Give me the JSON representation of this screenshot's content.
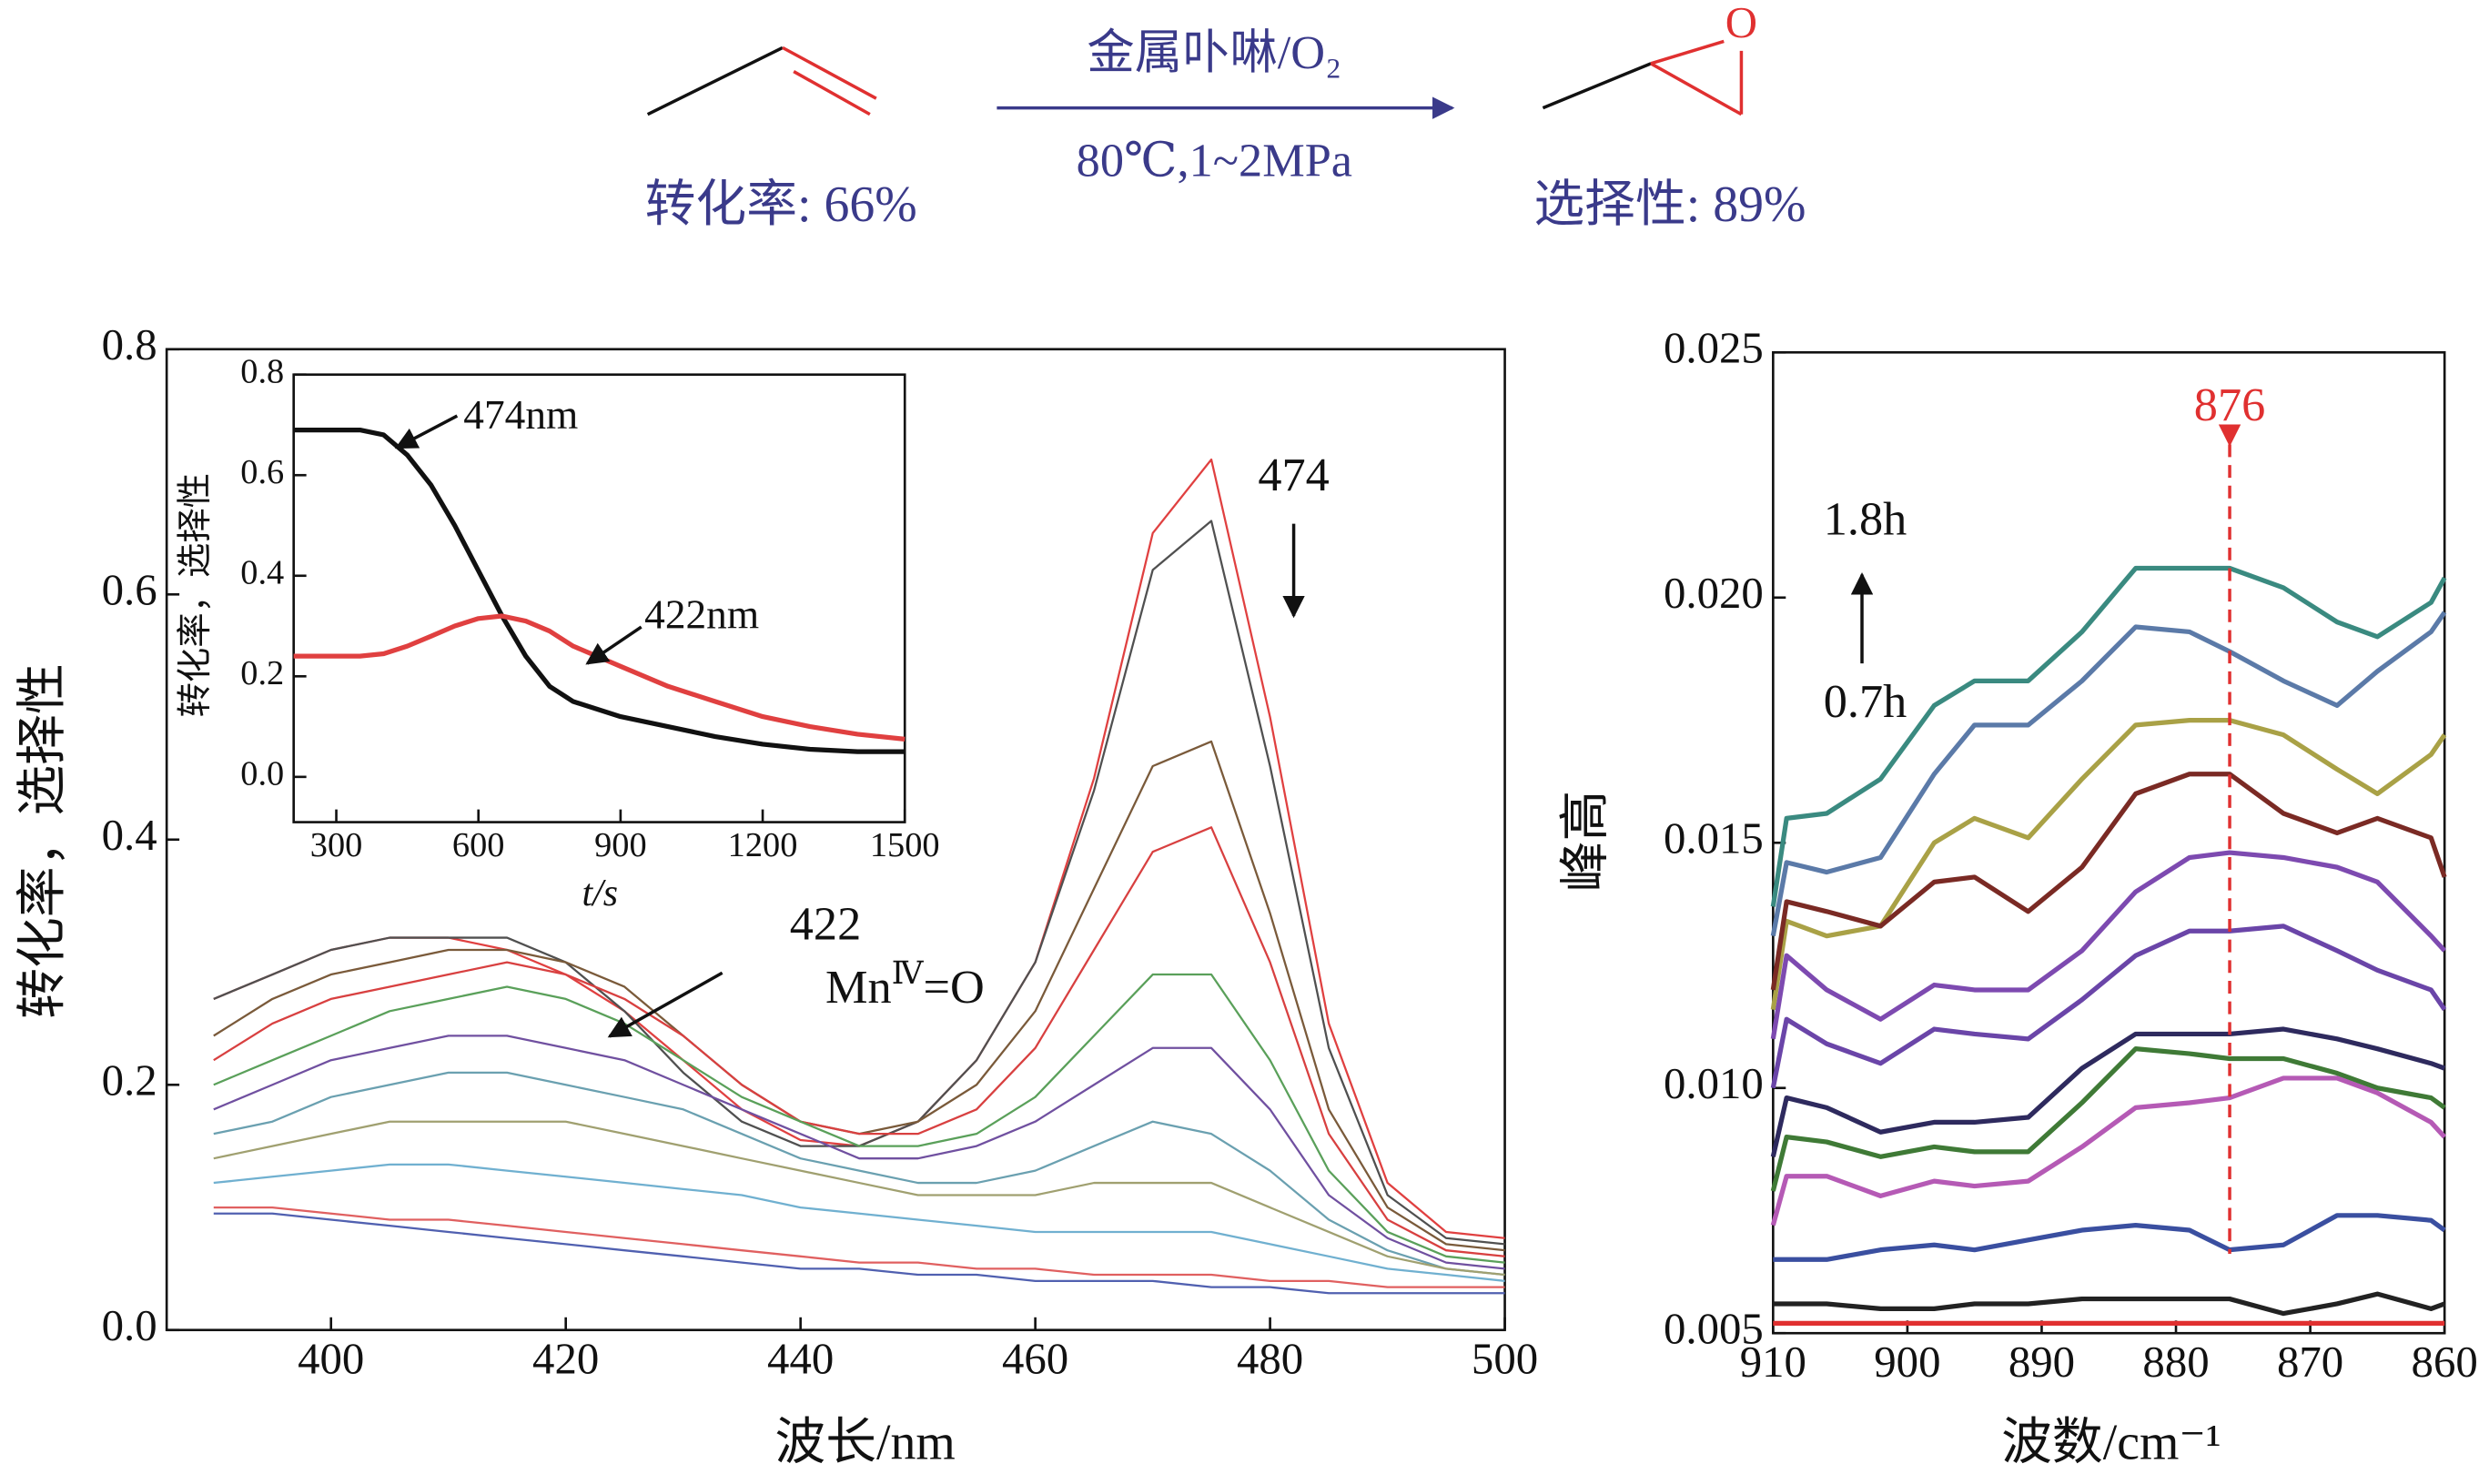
{
  "scheme": {
    "catalyst": "金属卟啉/O₂",
    "conditions": "80℃,1~2MPa",
    "conversion": "转化率: 66%",
    "selectivity": "选择性: 89%",
    "oxygen": "O"
  },
  "chart_data": [
    {
      "type": "line",
      "ylabel": "转化率，选择性",
      "xlabel": "波长/nm",
      "xlim": [
        386,
        500
      ],
      "ylim": [
        0,
        0.8
      ],
      "xticks": [
        400,
        420,
        440,
        460,
        480,
        500
      ],
      "yticks": [
        {
          "value": 0,
          "label": "0.0"
        },
        0.2,
        0.4,
        0.6,
        0.8
      ],
      "x": [
        390,
        395,
        400,
        405,
        410,
        415,
        420,
        425,
        430,
        435,
        440,
        445,
        450,
        455,
        460,
        465,
        470,
        475,
        480,
        485,
        490,
        495,
        500
      ],
      "series": [
        {
          "color": "#e04040",
          "values": [
            0.27,
            0.29,
            0.31,
            0.32,
            0.32,
            0.31,
            0.29,
            0.26,
            0.22,
            0.18,
            0.155,
            0.15,
            0.17,
            0.22,
            0.3,
            0.45,
            0.65,
            0.71,
            0.5,
            0.25,
            0.12,
            0.08,
            0.075
          ]
        },
        {
          "color": "#505050",
          "values": [
            0.27,
            0.29,
            0.31,
            0.32,
            0.32,
            0.32,
            0.3,
            0.26,
            0.21,
            0.17,
            0.15,
            0.15,
            0.17,
            0.22,
            0.3,
            0.44,
            0.62,
            0.66,
            0.46,
            0.23,
            0.11,
            0.075,
            0.07
          ]
        },
        {
          "color": "#7a5a3a",
          "values": [
            0.24,
            0.27,
            0.29,
            0.3,
            0.31,
            0.31,
            0.3,
            0.28,
            0.24,
            0.2,
            0.17,
            0.16,
            0.17,
            0.2,
            0.26,
            0.36,
            0.46,
            0.48,
            0.34,
            0.18,
            0.1,
            0.07,
            0.065
          ]
        },
        {
          "color": "#d84040",
          "values": [
            0.22,
            0.25,
            0.27,
            0.28,
            0.29,
            0.3,
            0.29,
            0.27,
            0.24,
            0.2,
            0.17,
            0.16,
            0.16,
            0.18,
            0.23,
            0.31,
            0.39,
            0.41,
            0.3,
            0.16,
            0.09,
            0.065,
            0.06
          ]
        },
        {
          "color": "#5aa05a",
          "values": [
            0.2,
            0.22,
            0.24,
            0.26,
            0.27,
            0.28,
            0.27,
            0.25,
            0.22,
            0.19,
            0.17,
            0.15,
            0.15,
            0.16,
            0.19,
            0.24,
            0.29,
            0.29,
            0.22,
            0.13,
            0.08,
            0.06,
            0.055
          ]
        },
        {
          "color": "#7050a0",
          "values": [
            0.18,
            0.2,
            0.22,
            0.23,
            0.24,
            0.24,
            0.23,
            0.22,
            0.2,
            0.18,
            0.16,
            0.14,
            0.14,
            0.15,
            0.17,
            0.2,
            0.23,
            0.23,
            0.18,
            0.11,
            0.075,
            0.055,
            0.05
          ]
        },
        {
          "color": "#6aa0b0",
          "values": [
            0.16,
            0.17,
            0.19,
            0.2,
            0.21,
            0.21,
            0.2,
            0.19,
            0.18,
            0.16,
            0.14,
            0.13,
            0.12,
            0.12,
            0.13,
            0.15,
            0.17,
            0.16,
            0.13,
            0.09,
            0.065,
            0.05,
            0.045
          ]
        },
        {
          "color": "#a0a070",
          "values": [
            0.14,
            0.15,
            0.16,
            0.17,
            0.17,
            0.17,
            0.17,
            0.16,
            0.15,
            0.14,
            0.13,
            0.12,
            0.11,
            0.11,
            0.11,
            0.12,
            0.12,
            0.12,
            0.1,
            0.08,
            0.06,
            0.05,
            0.045
          ]
        },
        {
          "color": "#70b0d0",
          "values": [
            0.12,
            0.125,
            0.13,
            0.135,
            0.135,
            0.13,
            0.125,
            0.12,
            0.115,
            0.11,
            0.1,
            0.095,
            0.09,
            0.085,
            0.08,
            0.08,
            0.08,
            0.08,
            0.07,
            0.06,
            0.05,
            0.045,
            0.04
          ]
        },
        {
          "color": "#e06060",
          "values": [
            0.1,
            0.1,
            0.095,
            0.09,
            0.09,
            0.085,
            0.08,
            0.075,
            0.07,
            0.065,
            0.06,
            0.055,
            0.055,
            0.05,
            0.05,
            0.045,
            0.045,
            0.045,
            0.04,
            0.04,
            0.035,
            0.035,
            0.035
          ]
        },
        {
          "color": "#5060b0",
          "values": [
            0.095,
            0.095,
            0.09,
            0.085,
            0.08,
            0.075,
            0.07,
            0.065,
            0.06,
            0.055,
            0.05,
            0.05,
            0.045,
            0.045,
            0.04,
            0.04,
            0.04,
            0.035,
            0.035,
            0.03,
            0.03,
            0.03,
            0.03
          ]
        }
      ],
      "annotations": [
        {
          "text": "474"
        },
        {
          "text": "422"
        },
        {
          "text": [
            "Mn",
            "Ⅳ",
            "=O"
          ]
        }
      ]
    },
    {
      "type": "line",
      "ylabel": "转化率，选择性",
      "xlabel": "t/s",
      "xlim": [
        210,
        1500
      ],
      "ylim": [
        -0.09,
        0.8
      ],
      "xticks": [
        300,
        600,
        900,
        1200,
        1500
      ],
      "yticks": [
        {
          "value": 0,
          "label": "0.0"
        },
        0.2,
        0.4,
        0.6,
        0.8
      ],
      "x": [
        210,
        300,
        350,
        400,
        450,
        500,
        550,
        600,
        650,
        700,
        750,
        800,
        900,
        1000,
        1100,
        1200,
        1300,
        1400,
        1500
      ],
      "series": [
        {
          "color": "#111111",
          "values": [
            0.69,
            0.69,
            0.69,
            0.68,
            0.64,
            0.58,
            0.5,
            0.41,
            0.32,
            0.24,
            0.18,
            0.15,
            0.12,
            0.1,
            0.08,
            0.065,
            0.055,
            0.05,
            0.05
          ]
        },
        {
          "color": "#e04040",
          "values": [
            0.24,
            0.24,
            0.24,
            0.245,
            0.26,
            0.28,
            0.3,
            0.315,
            0.32,
            0.31,
            0.29,
            0.26,
            0.22,
            0.18,
            0.15,
            0.12,
            0.1,
            0.085,
            0.075
          ]
        }
      ],
      "annotations": [
        {
          "text": "474nm"
        },
        {
          "text": "422nm"
        }
      ]
    },
    {
      "type": "line",
      "ylabel": "峰高",
      "xlabel": "波数/cm⁻¹",
      "xlim": [
        910,
        860
      ],
      "ylim": [
        0.005,
        0.025
      ],
      "xticks": [
        910,
        900,
        890,
        880,
        870,
        860
      ],
      "yticks": [
        0.005,
        {
          "value": 0.01,
          "label": "0.010"
        },
        0.015,
        {
          "value": 0.02,
          "label": "0.020"
        },
        0.025
      ],
      "x": [
        910,
        909,
        906,
        902,
        898,
        895,
        891,
        887,
        883,
        879,
        876,
        872,
        868,
        865,
        861,
        860
      ],
      "series": [
        {
          "color": "#3a8a80",
          "values": [
            0.0137,
            0.0155,
            0.0156,
            0.0163,
            0.0178,
            0.0183,
            0.0183,
            0.0193,
            0.0206,
            0.0206,
            0.0206,
            0.0202,
            0.0195,
            0.0192,
            0.0199,
            0.0204
          ]
        },
        {
          "color": "#5b7aa8",
          "values": [
            0.0131,
            0.0146,
            0.0144,
            0.0147,
            0.0164,
            0.0174,
            0.0174,
            0.0183,
            0.0194,
            0.0193,
            0.0189,
            0.0183,
            0.0178,
            0.0185,
            0.0193,
            0.0197
          ]
        },
        {
          "color": "#a9a146",
          "values": [
            0.0116,
            0.0134,
            0.0131,
            0.0133,
            0.015,
            0.0155,
            0.0151,
            0.0163,
            0.0174,
            0.0175,
            0.0175,
            0.0172,
            0.0165,
            0.016,
            0.0168,
            0.0172
          ]
        },
        {
          "color": "#7a2a24",
          "values": [
            0.012,
            0.0138,
            0.0136,
            0.0133,
            0.0142,
            0.0143,
            0.0136,
            0.0145,
            0.016,
            0.0164,
            0.0164,
            0.0156,
            0.0152,
            0.0155,
            0.0151,
            0.0143
          ]
        },
        {
          "color": "#7d4ab0",
          "values": [
            0.011,
            0.0127,
            0.012,
            0.0114,
            0.0121,
            0.012,
            0.012,
            0.0128,
            0.014,
            0.0147,
            0.0148,
            0.0147,
            0.0145,
            0.0142,
            0.0131,
            0.0128
          ]
        },
        {
          "color": "#6a45a8",
          "values": [
            0.01,
            0.0114,
            0.0109,
            0.0105,
            0.0112,
            0.0111,
            0.011,
            0.0118,
            0.0127,
            0.0132,
            0.0132,
            0.0133,
            0.0128,
            0.0124,
            0.012,
            0.0116
          ]
        },
        {
          "color": "#2e2a5e",
          "values": [
            0.0086,
            0.0098,
            0.0096,
            0.0091,
            0.0093,
            0.0093,
            0.0094,
            0.0104,
            0.0111,
            0.0111,
            0.0111,
            0.0112,
            0.011,
            0.0108,
            0.0105,
            0.0104
          ]
        },
        {
          "color": "#3f7a36",
          "values": [
            0.0079,
            0.009,
            0.0089,
            0.0086,
            0.0088,
            0.0087,
            0.0087,
            0.0097,
            0.0108,
            0.0107,
            0.0106,
            0.0106,
            0.0103,
            0.01,
            0.0098,
            0.0096
          ]
        },
        {
          "color": "#b55ab5",
          "values": [
            0.0072,
            0.0082,
            0.0082,
            0.0078,
            0.0081,
            0.008,
            0.0081,
            0.0088,
            0.0096,
            0.0097,
            0.0098,
            0.0102,
            0.0102,
            0.0099,
            0.0093,
            0.009
          ]
        },
        {
          "color": "#3a4fa0",
          "values": [
            0.0065,
            0.0065,
            0.0065,
            0.0067,
            0.0068,
            0.0067,
            0.0069,
            0.0071,
            0.0072,
            0.0071,
            0.0067,
            0.0068,
            0.0074,
            0.0074,
            0.0073,
            0.0071
          ]
        },
        {
          "color": "#222222",
          "values": [
            0.0056,
            0.0056,
            0.0056,
            0.0055,
            0.0055,
            0.0056,
            0.0056,
            0.0057,
            0.0057,
            0.0057,
            0.0057,
            0.0054,
            0.0056,
            0.0058,
            0.0055,
            0.0056
          ]
        },
        {
          "color": "#e03030",
          "values": [
            0.0052,
            0.0052,
            0.0052,
            0.0052,
            0.0052,
            0.0052,
            0.0052,
            0.0052,
            0.0052,
            0.0052,
            0.0052,
            0.0052,
            0.0052,
            0.0052,
            0.0052,
            0.0052
          ]
        }
      ],
      "reference_line": {
        "x": 876,
        "color": "#e03030"
      },
      "annotations": [
        {
          "text": "1.8h"
        },
        {
          "text": "0.7h"
        }
      ]
    }
  ]
}
